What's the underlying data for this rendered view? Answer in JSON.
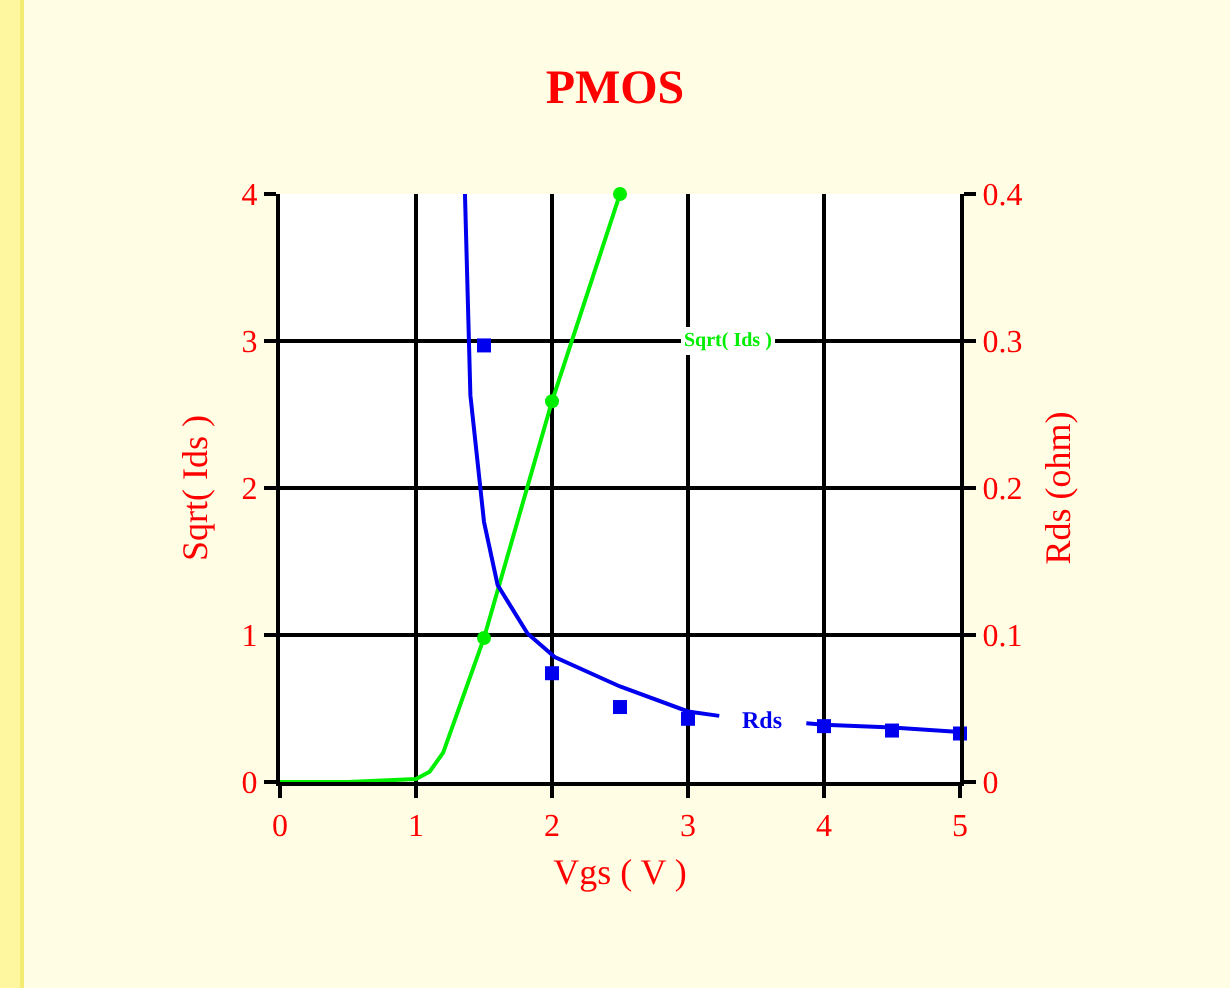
{
  "chart_data": {
    "type": "line",
    "title": "PMOS",
    "xlabel": "Vgs ( V )",
    "ylabel": "Sqrt( Ids )",
    "y2label": "Rds (ohm)",
    "xlim": [
      0,
      5
    ],
    "xticks": [
      0,
      1,
      2,
      3,
      4,
      5
    ],
    "ylim": [
      0,
      4
    ],
    "yticks": [
      0,
      1,
      2,
      3,
      4
    ],
    "y2lim": [
      0,
      0.4
    ],
    "y2ticks": [
      0,
      0.1,
      0.2,
      0.3,
      0.4
    ],
    "grid": true,
    "legend": false,
    "series": [
      {
        "name": "Sqrt( Ids )",
        "color": "#00ee00",
        "marker": "none",
        "x": [
          0,
          0.5,
          1,
          1.1,
          1.2,
          1.5,
          2,
          2.5
        ],
        "values": [
          0,
          0,
          0.02,
          0.07,
          0.2,
          0.98,
          2.59,
          4.0
        ]
      },
      {
        "type": "scatter",
        "color": "#00ee00",
        "marker": "circle",
        "x": [
          1.5,
          2,
          2.5
        ],
        "values": [
          0.98,
          2.59,
          4.0
        ]
      },
      {
        "name": "Rds",
        "axis": "y2",
        "color": "#0000ee",
        "marker": "none",
        "x": [
          1.36,
          1.4,
          1.5,
          1.6,
          1.82,
          2.02,
          2.5,
          3,
          3.23,
          3.5,
          3.87,
          4,
          4.5,
          5
        ],
        "values": [
          0.4,
          0.263,
          0.177,
          0.134,
          0.101,
          0.085,
          0.065,
          0.048,
          0.045,
          null,
          0.04,
          0.039,
          0.037,
          0.034
        ]
      },
      {
        "type": "scatter",
        "axis": "y2",
        "color": "#0000ee",
        "marker": "square",
        "x": [
          1.5,
          2,
          2.5,
          3,
          4,
          4.5,
          5
        ],
        "values": [
          0.297,
          0.074,
          0.051,
          0.043,
          0.038,
          0.035,
          0.033
        ]
      }
    ]
  }
}
